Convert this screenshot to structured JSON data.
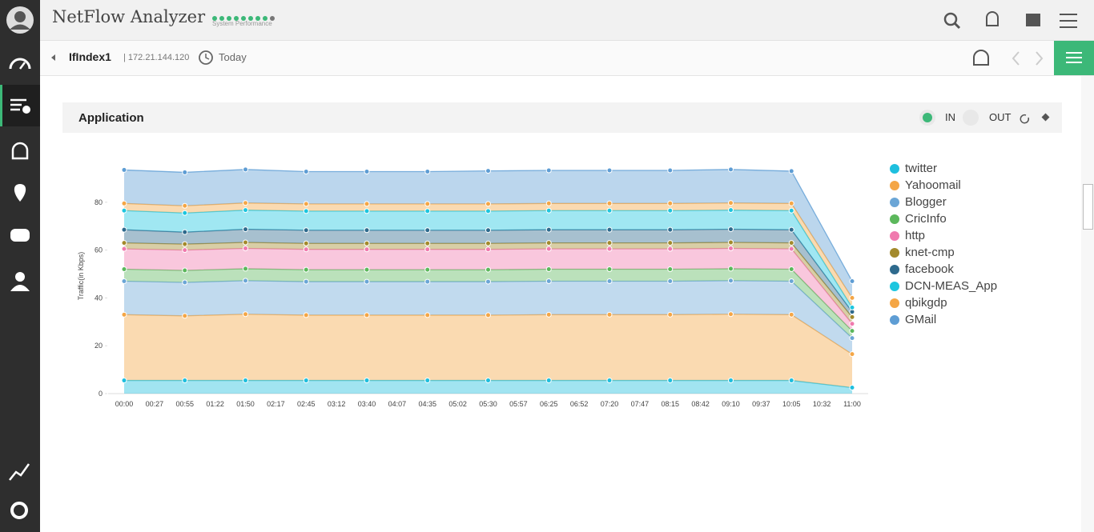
{
  "header": {
    "title": "NetFlow Analyzer",
    "status_label": "System Performance"
  },
  "toolbar": {
    "interface": "IfIndex1",
    "ip": "| 172.21.144.120",
    "period": "Today"
  },
  "panel": {
    "title": "Application",
    "toggle_in": "IN",
    "toggle_out": "OUT"
  },
  "chart_data": {
    "type": "area",
    "stacked": true,
    "y_label": "Traffic(in Kbps)",
    "x": [
      "00:00",
      "00:55",
      "01:50",
      "02:45",
      "03:40",
      "04:35",
      "05:30",
      "06:25",
      "07:20",
      "08:15",
      "09:10",
      "10:05",
      "11:00"
    ],
    "xticks": [
      "00:00",
      "00:27",
      "00:55",
      "01:22",
      "01:50",
      "02:17",
      "02:45",
      "03:12",
      "03:40",
      "04:07",
      "04:35",
      "05:02",
      "05:30",
      "05:57",
      "06:25",
      "06:52",
      "07:20",
      "07:47",
      "08:15",
      "08:42",
      "09:10",
      "09:37",
      "10:05",
      "10:32",
      "11:00"
    ],
    "ylim": [
      0,
      100
    ],
    "yticks": [
      0,
      20,
      40,
      60,
      80
    ],
    "grid": false,
    "legend": "right",
    "series": [
      {
        "name": "twitter",
        "color": "#1ebfde",
        "values": [
          5.5,
          5.5,
          5.5,
          5.5,
          5.5,
          5.5,
          5.5,
          5.5,
          5.5,
          5.5,
          5.5,
          5.5,
          2.5
        ]
      },
      {
        "name": "Yahoomail",
        "color": "#f4a646",
        "values": [
          27.5,
          27,
          27.7,
          27.3,
          27.3,
          27.3,
          27.3,
          27.5,
          27.5,
          27.5,
          27.7,
          27.5,
          14
        ]
      },
      {
        "name": "Blogger",
        "color": "#6ba6d6",
        "values": [
          14,
          14,
          14,
          14,
          14,
          14,
          14,
          14,
          14,
          14,
          14,
          14,
          6.7
        ]
      },
      {
        "name": "CricInfo",
        "color": "#5cb85c",
        "values": [
          5,
          5,
          5,
          5,
          5,
          5,
          5,
          5,
          5,
          5,
          5,
          5,
          3
        ]
      },
      {
        "name": "http",
        "color": "#f07aae",
        "values": [
          8.5,
          8.5,
          8.5,
          8.5,
          8.5,
          8.5,
          8.5,
          8.5,
          8.5,
          8.5,
          8.5,
          8.5,
          3
        ]
      },
      {
        "name": "knet-cmp",
        "color": "#a38a2c",
        "values": [
          2.5,
          2.5,
          2.5,
          2.5,
          2.5,
          2.5,
          2.5,
          2.5,
          2.5,
          2.5,
          2.5,
          2.5,
          2.8
        ]
      },
      {
        "name": "facebook",
        "color": "#2e6a8d",
        "values": [
          5.5,
          5,
          5.5,
          5.5,
          5.5,
          5.5,
          5.5,
          5.5,
          5.5,
          5.5,
          5.5,
          5.5,
          2.2
        ]
      },
      {
        "name": "DCN-MEAS_App",
        "color": "#1dc6df",
        "values": [
          8,
          8,
          8,
          8,
          8,
          8,
          8,
          8,
          8,
          8,
          8,
          8,
          1.8
        ]
      },
      {
        "name": "qbikgdp",
        "color": "#f4a646",
        "values": [
          3,
          3,
          3,
          3,
          3,
          3,
          3,
          3,
          3,
          3,
          3,
          3,
          4
        ]
      },
      {
        "name": "GMail",
        "color": "#5e9dd4",
        "values": [
          14,
          14,
          14,
          13.5,
          13.5,
          13.5,
          13.8,
          13.8,
          13.8,
          13.8,
          14,
          13.5,
          7
        ]
      }
    ]
  }
}
